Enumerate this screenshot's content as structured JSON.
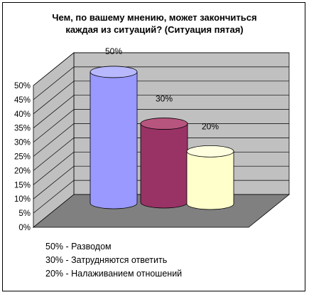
{
  "chart_data": {
    "type": "bar",
    "style": "3d-cylinder",
    "title_lines": [
      "Чем, по вашему мнению, может закончиться",
      "каждая из ситуаций? (Ситуация пятая)"
    ],
    "categories": [
      "Разводом",
      "Затрудняются ответить",
      "Налаживанием отношений"
    ],
    "values": [
      50,
      30,
      20
    ],
    "data_labels": [
      "50%",
      "30%",
      "20%"
    ],
    "ylim": [
      0,
      50
    ],
    "y_ticks": [
      "0%",
      "5%",
      "10%",
      "15%",
      "20%",
      "25%",
      "30%",
      "35%",
      "40%",
      "45%",
      "50%"
    ],
    "grid": true,
    "legend_position": "bottom-left",
    "legend": [
      "50% - Разводом",
      "30% - Затрудняются ответить",
      "20% - Налаживанием отношений"
    ],
    "colors": {
      "wall": "#c0c0c0",
      "floor": "#808080",
      "bars": [
        "#9999ff",
        "#993366",
        "#ffffcc"
      ],
      "bar_tops": [
        "#b8b8ff",
        "#b8557f",
        "#ffffe0"
      ]
    }
  }
}
